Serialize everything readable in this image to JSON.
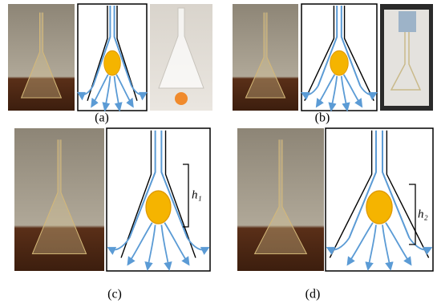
{
  "panels": [
    {
      "label": "(a)"
    },
    {
      "label": "(b)"
    },
    {
      "label": "(c)",
      "annotation": "h₁"
    },
    {
      "label": "(d)",
      "annotation": "h₂"
    }
  ]
}
